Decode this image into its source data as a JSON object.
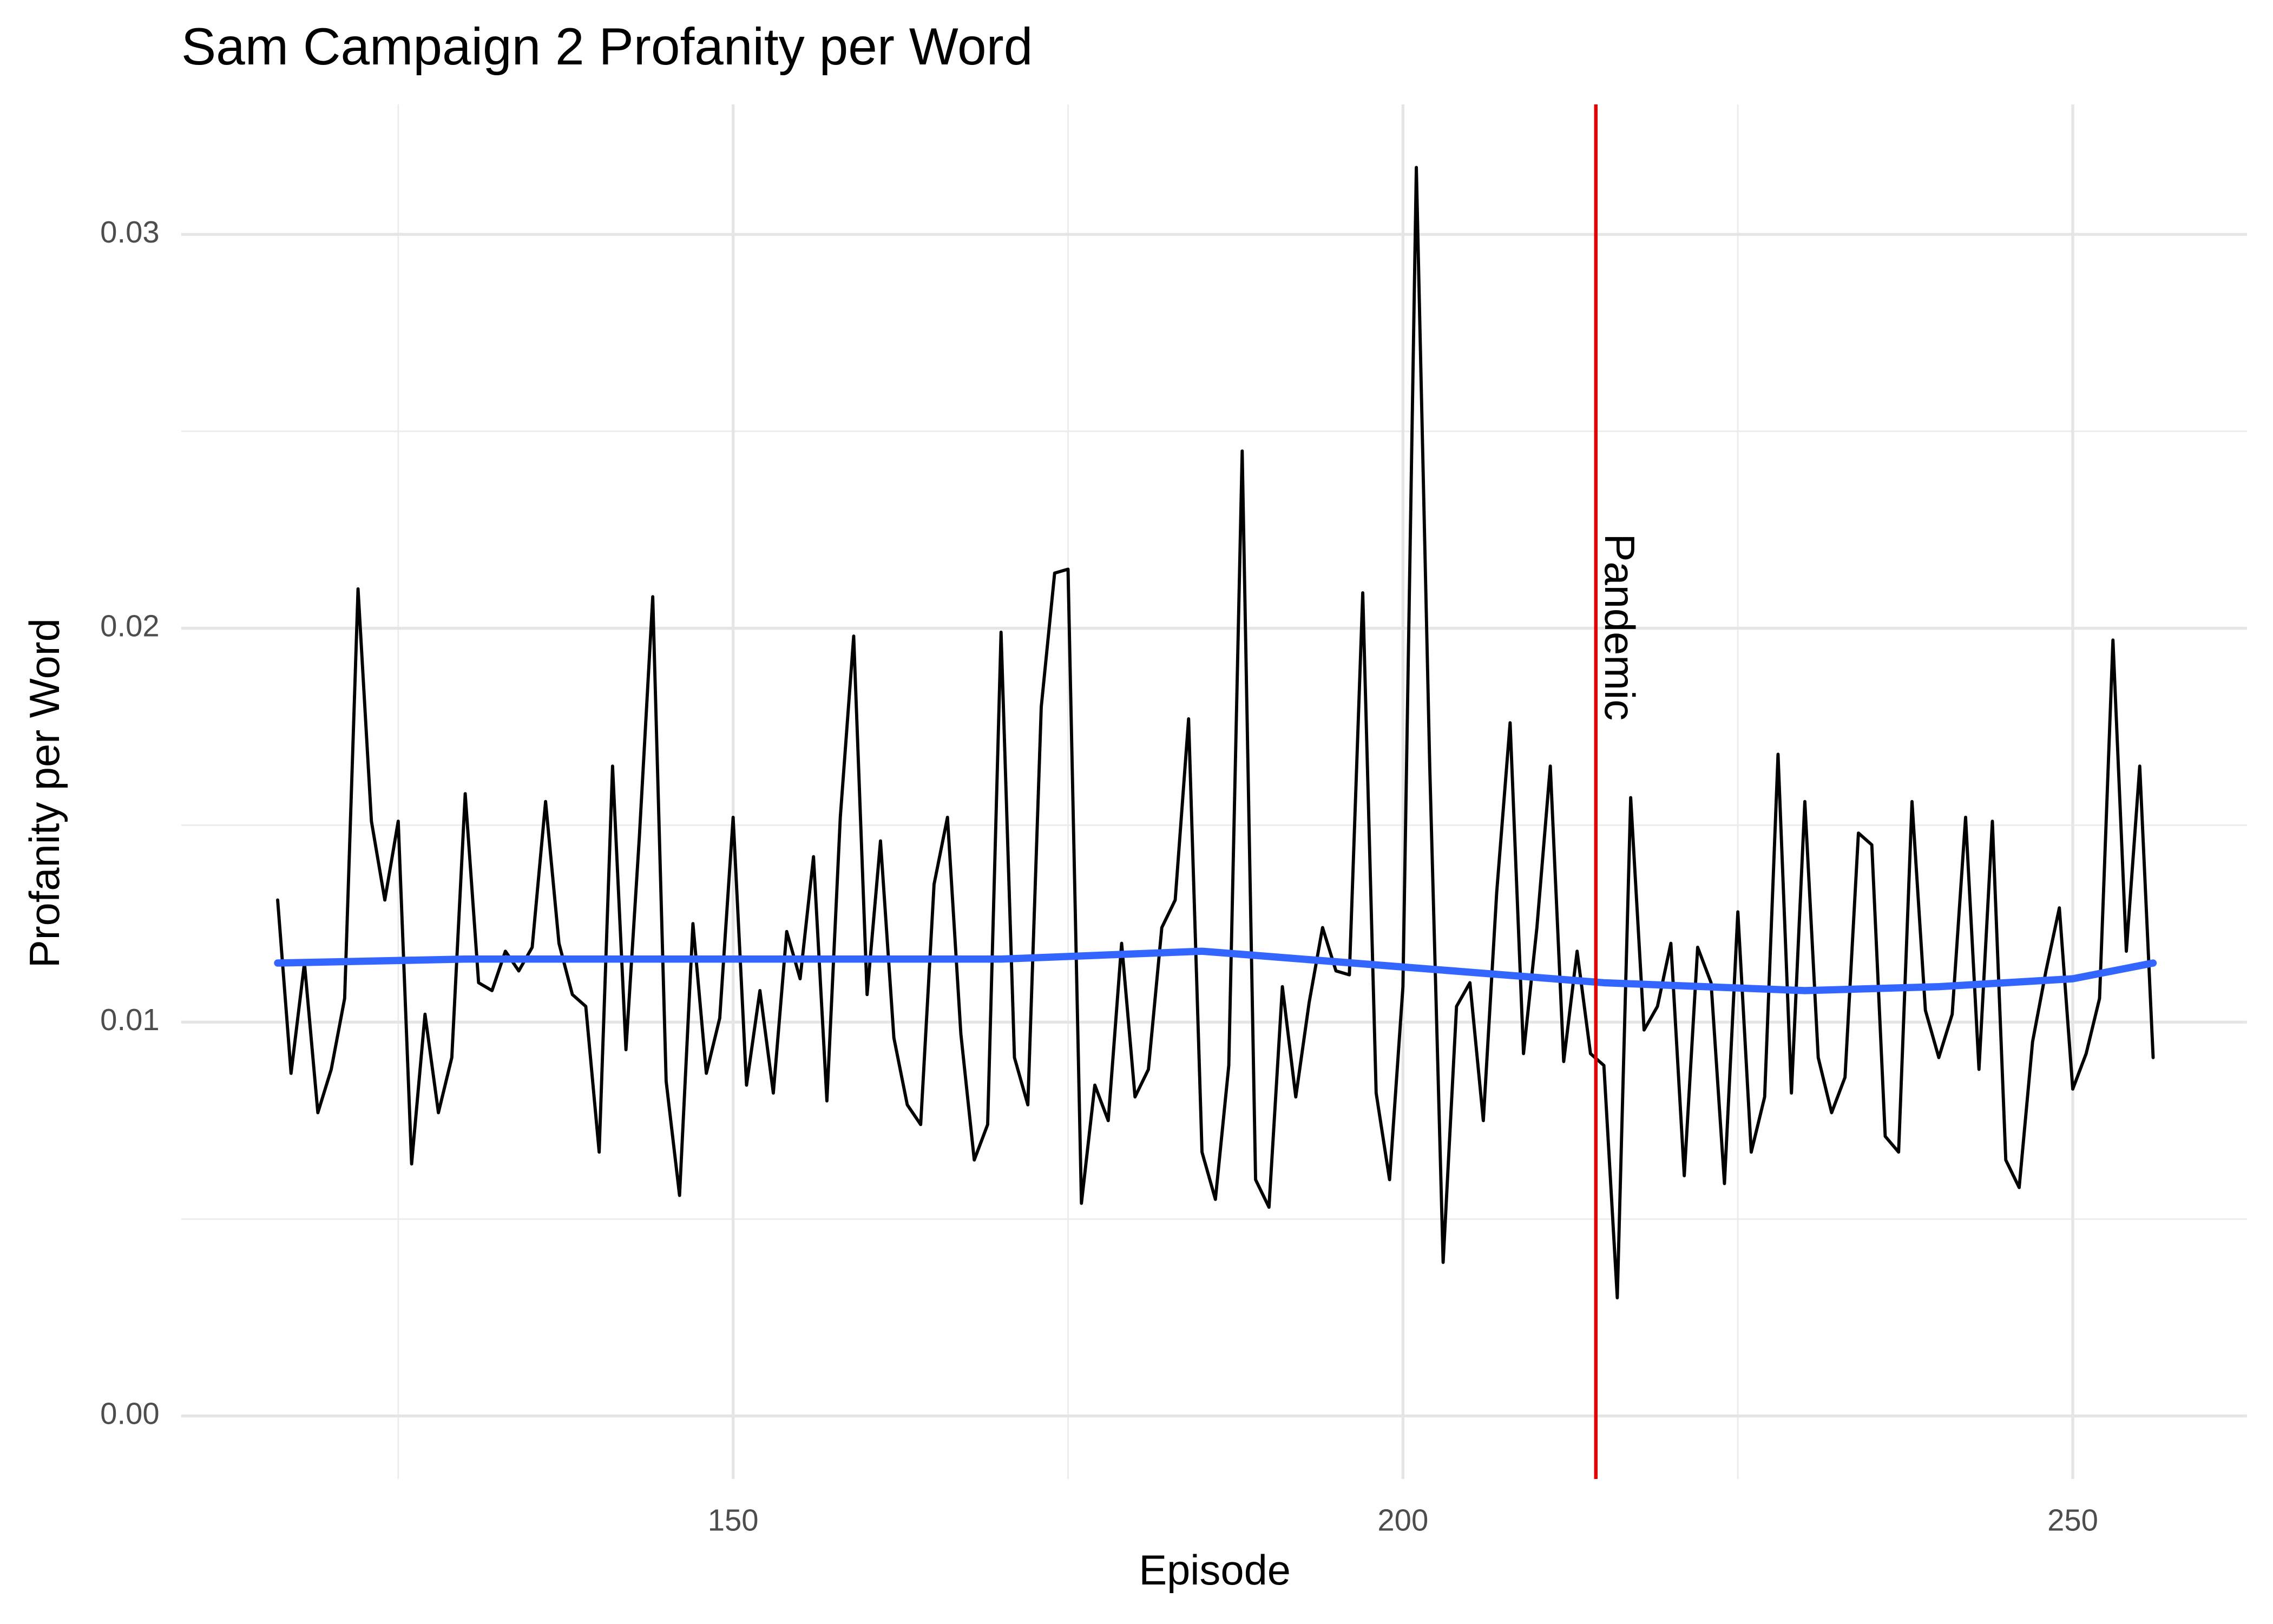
{
  "chart_data": {
    "type": "line",
    "title": "Sam Campaign 2 Profanity per Word",
    "x_label": "Episode",
    "y_label": "Profanity per Word",
    "xlim": [
      108.8,
      263.0
    ],
    "ylim": [
      -0.0016,
      0.0333
    ],
    "xticks": [
      150,
      200,
      250
    ],
    "yticks": [
      {
        "value": 0,
        "label": "0.00"
      },
      {
        "value": 0.01,
        "label": "0.01"
      },
      {
        "value": 0.02,
        "label": "0.02"
      },
      {
        "value": 0.03,
        "label": "0.03"
      }
    ],
    "x_minor_grid": [
      125,
      175,
      225
    ],
    "y_minor_grid": [
      0.005,
      0.015,
      0.025
    ],
    "grid": true,
    "series": [
      {
        "color": "#000000",
        "x": [
          116,
          117,
          118,
          119,
          120,
          121,
          122,
          123,
          124,
          125,
          126,
          127,
          128,
          129,
          130,
          131,
          132,
          133,
          134,
          135,
          136,
          137,
          138,
          139,
          140,
          141,
          142,
          143,
          144,
          145,
          146,
          147,
          148,
          149,
          150,
          151,
          152,
          153,
          154,
          155,
          156,
          157,
          158,
          159,
          160,
          161,
          162,
          163,
          164,
          165,
          166,
          167,
          168,
          169,
          170,
          171,
          172,
          173,
          174,
          175,
          176,
          177,
          178,
          179,
          180,
          181,
          182,
          183,
          184,
          185,
          186,
          187,
          188,
          189,
          190,
          191,
          192,
          193,
          194,
          195,
          196,
          197,
          198,
          199,
          200,
          201,
          202,
          203,
          204,
          205,
          206,
          207,
          208,
          209,
          210,
          211,
          212,
          213,
          214,
          215,
          216,
          217,
          218,
          219,
          220,
          221,
          222,
          223,
          224,
          225,
          226,
          227,
          228,
          229,
          230,
          231,
          232,
          233,
          234,
          235,
          236,
          237,
          238,
          239,
          240,
          241,
          242,
          243,
          244,
          245,
          246,
          247,
          248,
          249,
          250,
          251,
          252,
          253,
          254,
          255,
          256
        ],
        "values": [
          0.0131,
          0.0087,
          0.0115,
          0.0077,
          0.0088,
          0.0106,
          0.021,
          0.0151,
          0.0131,
          0.0151,
          0.0064,
          0.0102,
          0.0077,
          0.0091,
          0.0158,
          0.011,
          0.0108,
          0.0118,
          0.0113,
          0.0119,
          0.0156,
          0.012,
          0.0107,
          0.0104,
          0.0067,
          0.0165,
          0.0093,
          0.0147,
          0.0208,
          0.0085,
          0.0056,
          0.0125,
          0.0087,
          0.0101,
          0.0152,
          0.0084,
          0.0108,
          0.0082,
          0.0123,
          0.0111,
          0.0142,
          0.008,
          0.0152,
          0.0198,
          0.0107,
          0.0146,
          0.0096,
          0.0079,
          0.0074,
          0.0135,
          0.0152,
          0.0097,
          0.0065,
          0.0074,
          0.0199,
          0.0091,
          0.0079,
          0.018,
          0.0214,
          0.0215,
          0.0054,
          0.0084,
          0.0075,
          0.012,
          0.0081,
          0.0088,
          0.0124,
          0.0131,
          0.0177,
          0.0067,
          0.0055,
          0.0089,
          0.0245,
          0.006,
          0.0053,
          0.0109,
          0.0081,
          0.0105,
          0.0124,
          0.0113,
          0.0112,
          0.0209,
          0.0082,
          0.006,
          0.0109,
          0.0317,
          0.0165,
          0.0039,
          0.0104,
          0.011,
          0.0075,
          0.0133,
          0.0176,
          0.0092,
          0.0124,
          0.0165,
          0.009,
          0.0118,
          0.0092,
          0.0089,
          0.003,
          0.0157,
          0.0098,
          0.0104,
          0.012,
          0.0061,
          0.0119,
          0.011,
          0.0059,
          0.0128,
          0.0067,
          0.0081,
          0.0168,
          0.0082,
          0.0156,
          0.0091,
          0.0077,
          0.0086,
          0.0148,
          0.0145,
          0.0071,
          0.0067,
          0.0156,
          0.0103,
          0.0091,
          0.0102,
          0.0152,
          0.0088,
          0.0151,
          0.0065,
          0.0058,
          0.0095,
          0.0113,
          0.0129,
          0.0083,
          0.0092,
          0.0106,
          0.0197,
          0.0118,
          0.0165,
          0.0091
        ]
      },
      {
        "color": "#3366ff",
        "x": [
          116,
          130,
          150,
          170,
          185,
          200,
          215,
          230,
          240,
          250,
          256
        ],
        "values": [
          0.0115,
          0.0116,
          0.0116,
          0.0116,
          0.0118,
          0.0114,
          0.011,
          0.0108,
          0.0109,
          0.0111,
          0.0115
        ]
      }
    ],
    "annotations": [
      {
        "x": 214.4,
        "label": "Pandemic",
        "color": "#e00000"
      }
    ]
  }
}
